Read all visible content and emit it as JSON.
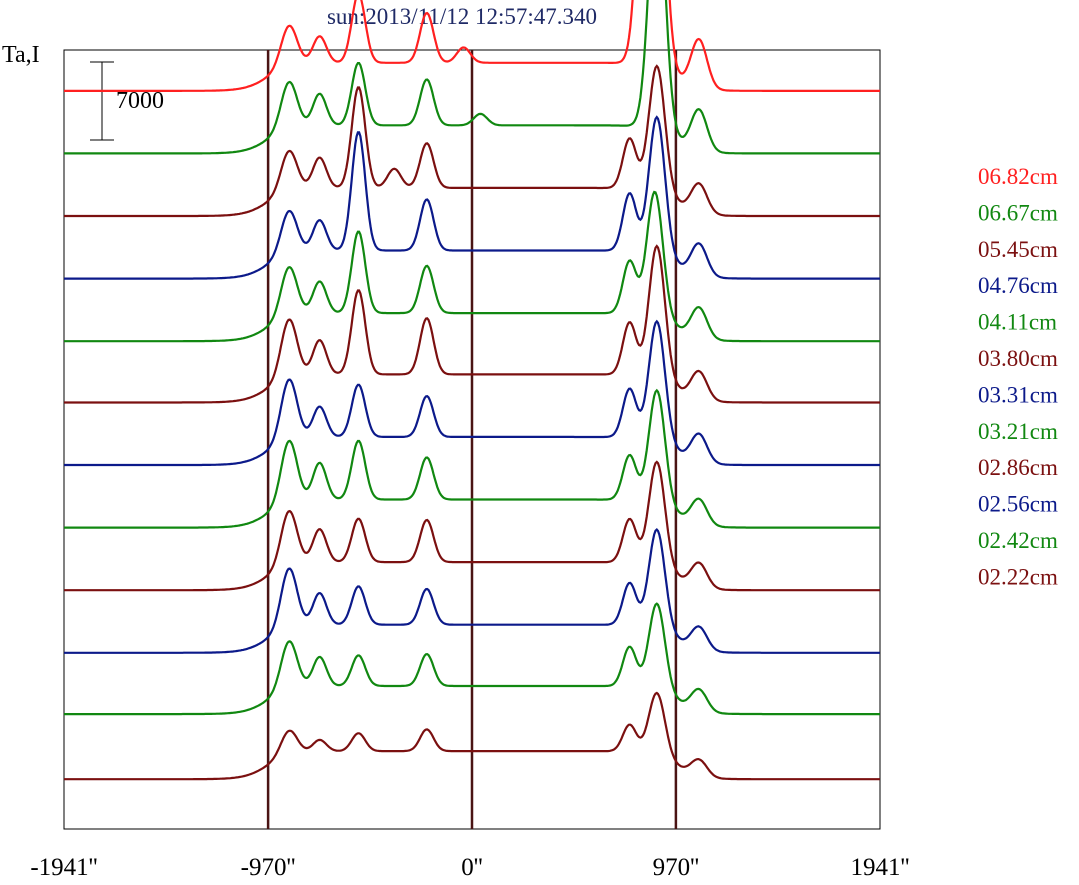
{
  "chart_data": {
    "type": "line",
    "title": "sun:2013/11/12 12:57:47.340",
    "ylabel": "Ta,I",
    "scale_bar_label": "7000",
    "x_ticks": [
      {
        "value": -1941,
        "label": "-1941''"
      },
      {
        "value": -970,
        "label": "-970''"
      },
      {
        "value": 0,
        "label": "0''"
      },
      {
        "value": 970,
        "label": "970''"
      },
      {
        "value": 1941,
        "label": "1941''"
      }
    ],
    "vlines": [
      -970,
      0,
      970
    ],
    "xlim": [
      -1941,
      1941
    ],
    "offset_step": 4800,
    "ylim": [
      0,
      61000
    ],
    "series": [
      {
        "name": "06.82cm",
        "color": "#ff2020",
        "baseline": 5000,
        "peaks": [
          [
            -870,
            3200
          ],
          [
            -725,
            2100
          ],
          [
            -540,
            5400
          ],
          [
            -215,
            3900
          ],
          [
            -40,
            1200
          ],
          [
            830,
            21500
          ],
          [
            880,
            19400
          ],
          [
            1080,
            3800
          ]
        ]
      },
      {
        "name": "06.67cm",
        "color": "#118811",
        "baseline": 4900,
        "peaks": [
          [
            -870,
            3700
          ],
          [
            -725,
            2500
          ],
          [
            -540,
            4900
          ],
          [
            -215,
            3600
          ],
          [
            40,
            900
          ],
          [
            880,
            19800
          ],
          [
            1080,
            3200
          ]
        ]
      },
      {
        "name": "05.45cm",
        "color": "#7b1010",
        "baseline": 4800,
        "peaks": [
          [
            -870,
            3200
          ],
          [
            -725,
            2400
          ],
          [
            -540,
            7900
          ],
          [
            -215,
            3500
          ],
          [
            -370,
            1500
          ],
          [
            750,
            3900
          ],
          [
            880,
            9900
          ],
          [
            1080,
            2300
          ]
        ]
      },
      {
        "name": "04.76cm",
        "color": "#0c1a8a",
        "baseline": 4700,
        "peaks": [
          [
            -870,
            3400
          ],
          [
            -725,
            2400
          ],
          [
            -540,
            9300
          ],
          [
            -215,
            4000
          ],
          [
            750,
            4500
          ],
          [
            880,
            10800
          ],
          [
            1080,
            2500
          ]
        ]
      },
      {
        "name": "04.11cm",
        "color": "#118811",
        "baseline": 4600,
        "peaks": [
          [
            -870,
            3900
          ],
          [
            -725,
            2500
          ],
          [
            -540,
            6400
          ],
          [
            -215,
            3700
          ],
          [
            750,
            4100
          ],
          [
            870,
            9800
          ],
          [
            1080,
            2400
          ]
        ]
      },
      {
        "name": "03.80cm",
        "color": "#7b1010",
        "baseline": 4600,
        "peaks": [
          [
            -870,
            4600
          ],
          [
            -725,
            2700
          ],
          [
            -540,
            6600
          ],
          [
            -215,
            4400
          ],
          [
            750,
            4100
          ],
          [
            880,
            10400
          ],
          [
            1080,
            2200
          ]
        ]
      },
      {
        "name": "03.31cm",
        "color": "#0c1a8a",
        "baseline": 4500,
        "peaks": [
          [
            -870,
            4800
          ],
          [
            -725,
            2400
          ],
          [
            -540,
            4100
          ],
          [
            -215,
            3200
          ],
          [
            750,
            3800
          ],
          [
            880,
            9400
          ],
          [
            1080,
            2200
          ]
        ]
      },
      {
        "name": "03.21cm",
        "color": "#118811",
        "baseline": 4400,
        "peaks": [
          [
            -870,
            4900
          ],
          [
            -725,
            2900
          ],
          [
            -540,
            4600
          ],
          [
            -215,
            3300
          ],
          [
            750,
            3500
          ],
          [
            880,
            8900
          ],
          [
            1080,
            2000
          ]
        ]
      },
      {
        "name": "02.86cm",
        "color": "#7b1010",
        "baseline": 4300,
        "peaks": [
          [
            -870,
            4300
          ],
          [
            -725,
            2600
          ],
          [
            -540,
            3400
          ],
          [
            -215,
            3300
          ],
          [
            750,
            3400
          ],
          [
            880,
            8200
          ],
          [
            1080,
            1900
          ]
        ]
      },
      {
        "name": "02.56cm",
        "color": "#0c1a8a",
        "baseline": 4200,
        "peaks": [
          [
            -870,
            4700
          ],
          [
            -725,
            2500
          ],
          [
            -540,
            3000
          ],
          [
            -215,
            2800
          ],
          [
            750,
            3300
          ],
          [
            880,
            7800
          ],
          [
            1080,
            1800
          ]
        ]
      },
      {
        "name": "02.42cm",
        "color": "#118811",
        "baseline": 4200,
        "peaks": [
          [
            -870,
            3800
          ],
          [
            -725,
            2300
          ],
          [
            -540,
            2400
          ],
          [
            -215,
            2500
          ],
          [
            750,
            3100
          ],
          [
            880,
            6800
          ],
          [
            1080,
            1700
          ]
        ]
      },
      {
        "name": "02.22cm",
        "color": "#7b1010",
        "baseline": 3900,
        "peaks": [
          [
            -870,
            1900
          ],
          [
            -725,
            900
          ],
          [
            -540,
            1400
          ],
          [
            -215,
            1700
          ],
          [
            750,
            2100
          ],
          [
            880,
            4900
          ],
          [
            1080,
            1300
          ]
        ]
      }
    ]
  }
}
